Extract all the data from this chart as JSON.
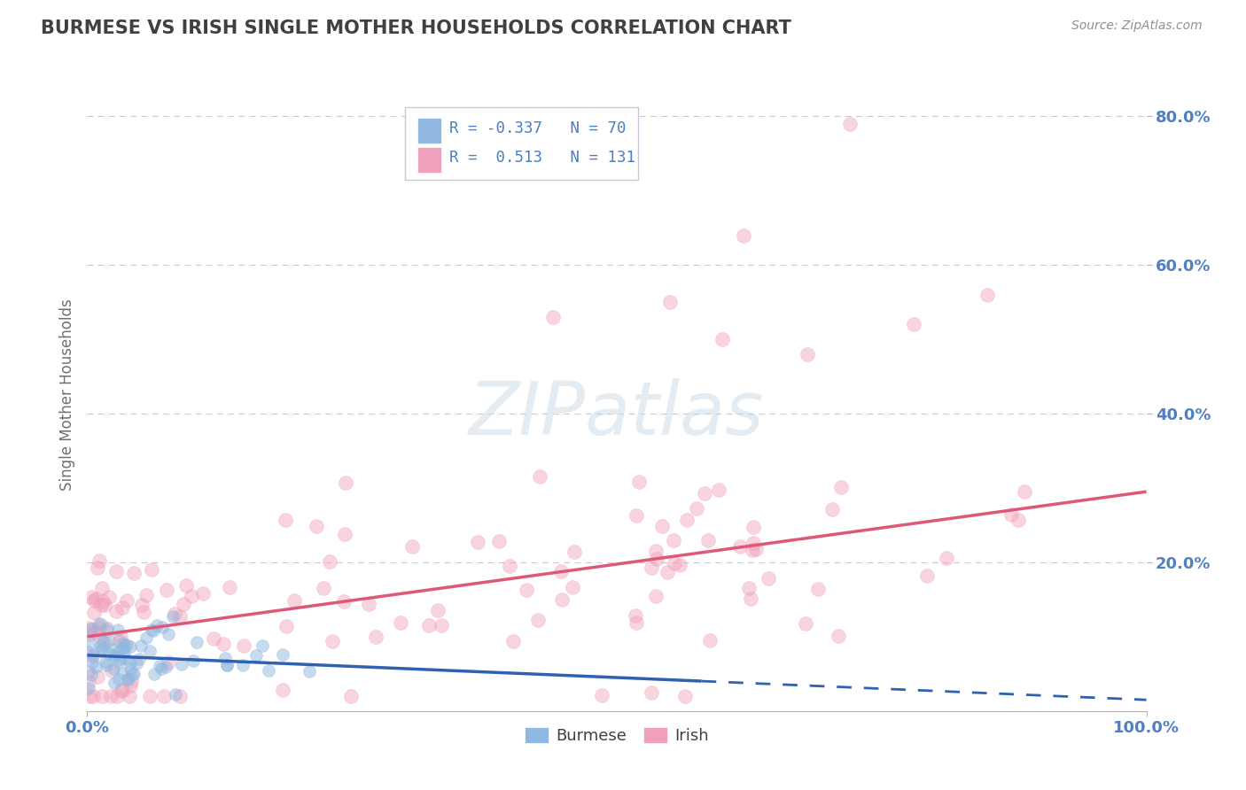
{
  "title": "BURMESE VS IRISH SINGLE MOTHER HOUSEHOLDS CORRELATION CHART",
  "source": "Source: ZipAtlas.com",
  "ylabel": "Single Mother Households",
  "xlabel": "",
  "xlim": [
    0.0,
    1.0
  ],
  "ylim": [
    0.0,
    0.85
  ],
  "xtick_labels": [
    "0.0%",
    "100.0%"
  ],
  "ytick_labels": [
    "20.0%",
    "40.0%",
    "60.0%",
    "80.0%"
  ],
  "ytick_values": [
    0.2,
    0.4,
    0.6,
    0.8
  ],
  "legend_bottom": [
    "Burmese",
    "Irish"
  ],
  "burmese_color": "#90b8e0",
  "irish_color": "#f0a0b8",
  "burmese_line_color": "#3060b0",
  "irish_line_color": "#e05878",
  "burmese_scatter_alpha": 0.5,
  "irish_scatter_alpha": 0.45,
  "burmese_marker_size": 100,
  "irish_marker_size": 130,
  "burmese_line_solid_end": 0.58,
  "irish_line_slope": 0.195,
  "irish_line_intercept": 0.1,
  "burmese_line_slope": -0.06,
  "burmese_line_intercept": 0.075,
  "watermark": "ZIPatlas",
  "background_color": "#ffffff",
  "grid_color": "#c8c8d8",
  "title_color": "#404040",
  "tick_label_color": "#5080c0"
}
